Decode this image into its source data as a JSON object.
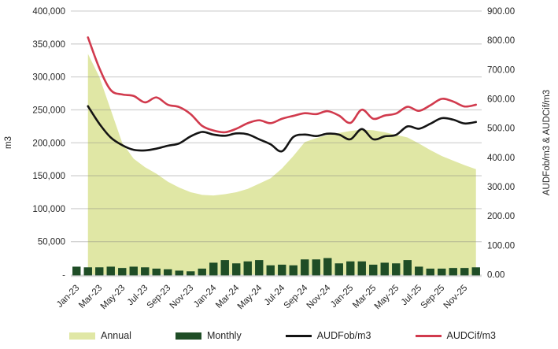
{
  "chart_data": {
    "type": "combo",
    "title": "",
    "categories": [
      "Jan-23",
      "Feb-23",
      "Mar-23",
      "Apr-23",
      "May-23",
      "Jun-23",
      "Jul-23",
      "Aug-23",
      "Sep-23",
      "Oct-23",
      "Nov-23",
      "Dec-23",
      "Jan-24",
      "Feb-24",
      "Mar-24",
      "Apr-24",
      "May-24",
      "Jun-24",
      "Jul-24",
      "Aug-24",
      "Sep-24",
      "Oct-24",
      "Nov-24",
      "Dec-24",
      "Jan-25",
      "Feb-25",
      "Mar-25",
      "Apr-25",
      "May-25",
      "Jun-25",
      "Jul-25",
      "Aug-25",
      "Sep-25",
      "Oct-25",
      "Nov-25",
      "Dec-25"
    ],
    "x_axis": {
      "tick_every": 2,
      "first_tick_label": "Jan-23",
      "last_tick_label": "Nov-25"
    },
    "left_axis": {
      "label": "m3",
      "min": 0,
      "max": 400000,
      "tick_step": 50000,
      "tick_labels": [
        "-",
        "50,000",
        "100,000",
        "150,000",
        "200,000",
        "250,000",
        "300,000",
        "350,000",
        "400,000"
      ]
    },
    "right_axis": {
      "label": "AUDFob/m3 & AUDCif/m3",
      "min": 0,
      "max": 900,
      "tick_step": 100,
      "tick_labels": [
        "0.00",
        "100.00",
        "200.00",
        "300.00",
        "400.00",
        "500.00",
        "600.00",
        "700.00",
        "800.00",
        "900.00"
      ]
    },
    "grid": true,
    "legend_position": "bottom",
    "series": [
      {
        "name": "Annual",
        "type": "area",
        "axis": "left",
        "color": "#e0e7a5",
        "values": [
          null,
          335000,
          300000,
          250000,
          200000,
          176000,
          163000,
          153000,
          141000,
          132000,
          125000,
          121000,
          120000,
          122000,
          125000,
          130000,
          138000,
          146000,
          161000,
          180000,
          201000,
          207000,
          212000,
          215000,
          218000,
          220000,
          219000,
          216000,
          212000,
          208000,
          199000,
          189000,
          180000,
          173000,
          166000,
          160000
        ]
      },
      {
        "name": "Monthly",
        "type": "bar",
        "axis": "left",
        "color": "#1f4d26",
        "values": [
          12000,
          11000,
          11000,
          12000,
          10000,
          12000,
          11000,
          9000,
          8000,
          6000,
          5000,
          9000,
          18000,
          22000,
          17000,
          20000,
          22000,
          14000,
          15000,
          14000,
          23000,
          23000,
          25000,
          17000,
          20000,
          20000,
          15000,
          18000,
          17000,
          22000,
          12000,
          9000,
          9000,
          10000,
          10000,
          11000
        ]
      },
      {
        "name": "AUDFob/m3",
        "type": "line",
        "axis": "right",
        "color": "#141414",
        "values": [
          null,
          575,
          515,
          468,
          442,
          426,
          424,
          430,
          440,
          448,
          472,
          487,
          478,
          474,
          482,
          479,
          462,
          445,
          421,
          470,
          478,
          473,
          481,
          478,
          462,
          497,
          462,
          472,
          477,
          506,
          498,
          515,
          534,
          529,
          516,
          521
        ]
      },
      {
        "name": "AUDCif/m3",
        "type": "line",
        "axis": "right",
        "color": "#d13a4d",
        "values": [
          null,
          810,
          705,
          630,
          615,
          610,
          588,
          605,
          580,
          572,
          548,
          508,
          492,
          486,
          498,
          517,
          527,
          517,
          532,
          542,
          551,
          548,
          558,
          543,
          518,
          563,
          532,
          543,
          550,
          573,
          559,
          578,
          600,
          591,
          574,
          580
        ]
      }
    ]
  },
  "legend": {
    "items": [
      {
        "label": "Annual"
      },
      {
        "label": "Monthly"
      },
      {
        "label": "AUDFob/m3"
      },
      {
        "label": "AUDCif/m3"
      }
    ]
  },
  "style": {
    "gridline_color": "#d9d9d9",
    "axis_line_color": "#d9d9d9",
    "tick_text_color": "#262626"
  }
}
